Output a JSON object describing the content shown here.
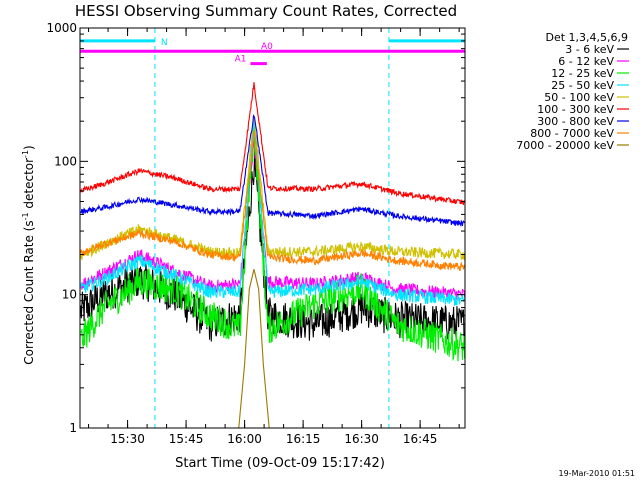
{
  "chart_data": {
    "type": "line",
    "title": "HESSI Observing Summary Count Rates, Corrected",
    "xlabel": "Start Time (09-Oct-09 15:17:42)",
    "ylabel_main": "Corrected Count Rate (s",
    "ylabel_sup1": "-1",
    "ylabel_mid": " detector",
    "ylabel_sup2": "-1",
    "ylabel_end": ")",
    "yscale": "log",
    "ylim": [
      1,
      1000
    ],
    "y_ticks": [
      {
        "value": 1,
        "label": "1"
      },
      {
        "value": 10,
        "label": "10"
      },
      {
        "value": 100,
        "label": "100"
      },
      {
        "value": 1000,
        "label": "1000"
      }
    ],
    "xlim": [
      15.2967,
      16.9417
    ],
    "x_ticks": [
      {
        "value": 15.5,
        "label": "15:30"
      },
      {
        "value": 15.75,
        "label": "15:45"
      },
      {
        "value": 16.0,
        "label": "16:00"
      },
      {
        "value": 16.25,
        "label": "16:15"
      },
      {
        "value": 16.5,
        "label": "16:30"
      },
      {
        "value": 16.75,
        "label": "16:45"
      }
    ],
    "legend_header": "Det 1,3,4,5,6,9",
    "legend_position": "right",
    "series": [
      {
        "name": "3 - 6 keV",
        "color": "#000000",
        "values": [
          [
            15.3,
            7.5
          ],
          [
            15.4,
            10
          ],
          [
            15.55,
            13
          ],
          [
            15.7,
            10
          ],
          [
            15.85,
            6
          ],
          [
            15.98,
            7
          ],
          [
            16.04,
            100
          ],
          [
            16.1,
            7
          ],
          [
            16.3,
            6
          ],
          [
            16.5,
            8
          ],
          [
            16.65,
            6.5
          ],
          [
            16.94,
            6
          ]
        ]
      },
      {
        "name": "6 - 12 keV",
        "color": "#ff00ff",
        "values": [
          [
            15.3,
            12
          ],
          [
            15.4,
            14.5
          ],
          [
            15.55,
            20
          ],
          [
            15.7,
            15
          ],
          [
            15.85,
            11.5
          ],
          [
            15.98,
            12
          ],
          [
            16.04,
            145
          ],
          [
            16.1,
            12.5
          ],
          [
            16.3,
            12
          ],
          [
            16.5,
            13.5
          ],
          [
            16.65,
            11
          ],
          [
            16.94,
            10
          ]
        ]
      },
      {
        "name": "12 - 25 keV",
        "color": "#00ee00",
        "values": [
          [
            15.3,
            4.5
          ],
          [
            15.4,
            8
          ],
          [
            15.55,
            12.5
          ],
          [
            15.7,
            11
          ],
          [
            15.85,
            7
          ],
          [
            15.98,
            5.5
          ],
          [
            16.04,
            190
          ],
          [
            16.1,
            5.5
          ],
          [
            16.3,
            8.5
          ],
          [
            16.5,
            11
          ],
          [
            16.65,
            6
          ],
          [
            16.94,
            4
          ]
        ]
      },
      {
        "name": "25 - 50 keV",
        "color": "#00e5ff",
        "values": [
          [
            15.3,
            11
          ],
          [
            15.4,
            13
          ],
          [
            15.55,
            18
          ],
          [
            15.7,
            14
          ],
          [
            15.85,
            10.5
          ],
          [
            15.98,
            10.5
          ],
          [
            16.04,
            205
          ],
          [
            16.1,
            10.5
          ],
          [
            16.3,
            11
          ],
          [
            16.5,
            12.5
          ],
          [
            16.65,
            10
          ],
          [
            16.94,
            9
          ]
        ]
      },
      {
        "name": "50 - 100 keV",
        "color": "#d0c000",
        "values": [
          [
            15.3,
            19.5
          ],
          [
            15.4,
            24
          ],
          [
            15.55,
            31
          ],
          [
            15.7,
            26
          ],
          [
            15.85,
            21
          ],
          [
            15.98,
            20.5
          ],
          [
            16.04,
            215
          ],
          [
            16.1,
            21
          ],
          [
            16.3,
            21
          ],
          [
            16.5,
            23
          ],
          [
            16.65,
            21
          ],
          [
            16.94,
            20
          ]
        ]
      },
      {
        "name": "100 - 300 keV",
        "color": "#ff0000",
        "values": [
          [
            15.3,
            60
          ],
          [
            15.4,
            68
          ],
          [
            15.55,
            85
          ],
          [
            15.7,
            75
          ],
          [
            15.85,
            62
          ],
          [
            15.98,
            62
          ],
          [
            16.04,
            385
          ],
          [
            16.1,
            63
          ],
          [
            16.3,
            62
          ],
          [
            16.5,
            68
          ],
          [
            16.65,
            58
          ],
          [
            16.94,
            49
          ]
        ]
      },
      {
        "name": "300 - 800 keV",
        "color": "#0000ee",
        "values": [
          [
            15.3,
            42
          ],
          [
            15.4,
            45
          ],
          [
            15.55,
            52
          ],
          [
            15.7,
            47
          ],
          [
            15.85,
            42
          ],
          [
            15.98,
            42
          ],
          [
            16.04,
            230
          ],
          [
            16.1,
            41
          ],
          [
            16.3,
            39
          ],
          [
            16.5,
            44
          ],
          [
            16.65,
            39
          ],
          [
            16.94,
            34
          ]
        ]
      },
      {
        "name": "800 - 7000 keV",
        "color": "#ff8000",
        "values": [
          [
            15.3,
            20.5
          ],
          [
            15.4,
            24
          ],
          [
            15.55,
            29
          ],
          [
            15.7,
            25
          ],
          [
            15.85,
            20
          ],
          [
            15.98,
            19
          ],
          [
            16.04,
            165
          ],
          [
            16.1,
            19
          ],
          [
            16.3,
            18
          ],
          [
            16.5,
            20.5
          ],
          [
            16.65,
            18
          ],
          [
            16.94,
            16
          ]
        ]
      },
      {
        "name": "7000 - 20000 keV",
        "color": "#9a7a00",
        "values": [
          [
            15.975,
            1
          ],
          [
            16.0,
            3
          ],
          [
            16.02,
            11
          ],
          [
            16.04,
            15.5
          ],
          [
            16.06,
            11
          ],
          [
            16.08,
            3
          ],
          [
            16.105,
            1
          ]
        ]
      }
    ],
    "attenuator_bars": [
      {
        "label": "A0",
        "color": "#ff00ff",
        "x_start": 15.2967,
        "x_end": 16.9417,
        "level": 670
      },
      {
        "label": "A1",
        "color": "#ff00ff",
        "x_start": 16.025,
        "x_end": 16.095,
        "level": 540
      }
    ],
    "night_bars": [
      {
        "label": "N",
        "color": "#00e5ff",
        "x_start": 15.2967,
        "x_end": 15.6167,
        "level": 800
      },
      {
        "label": "",
        "color": "#00e5ff",
        "x_start": 16.6167,
        "x_end": 16.9417,
        "level": 800
      }
    ],
    "night_boundaries": [
      15.6167,
      16.6167,
      16.9417
    ],
    "night_boundary_color": "#00e5ff",
    "stamp": "19-Mar-2010 01:51"
  }
}
